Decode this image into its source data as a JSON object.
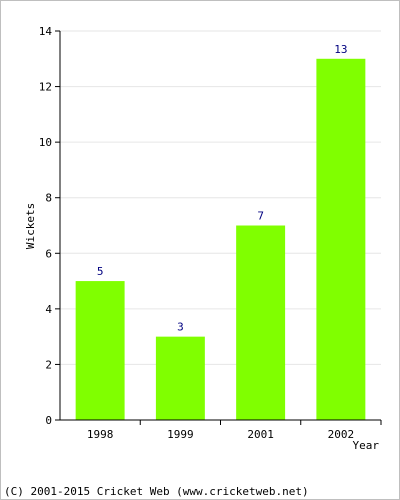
{
  "chart_data": {
    "type": "bar",
    "title": "",
    "xlabel": "Year",
    "ylabel": "Wickets",
    "categories": [
      "1998",
      "1999",
      "2001",
      "2002"
    ],
    "values": [
      5,
      3,
      7,
      13
    ],
    "ylim": [
      0,
      14
    ],
    "yticks": [
      "0",
      "2",
      "4",
      "6",
      "8",
      "10",
      "12",
      "14"
    ],
    "data_labels": [
      "5",
      "3",
      "7",
      "13"
    ],
    "grid": true,
    "bar_color": "#80ff00",
    "label_color": "#000080"
  },
  "footer": {
    "credit": "(C) 2001-2015 Cricket Web (www.cricketweb.net)"
  }
}
